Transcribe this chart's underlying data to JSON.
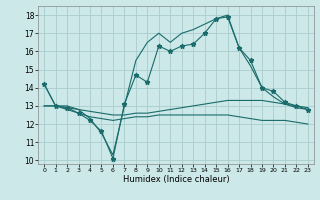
{
  "xlabel": "Humidex (Indice chaleur)",
  "x_ticks": [
    0,
    1,
    2,
    3,
    4,
    5,
    6,
    7,
    8,
    9,
    10,
    11,
    12,
    13,
    14,
    15,
    16,
    17,
    18,
    19,
    20,
    21,
    22,
    23
  ],
  "ylim": [
    9.8,
    18.5
  ],
  "xlim": [
    -0.5,
    23.5
  ],
  "y_ticks": [
    10,
    11,
    12,
    13,
    14,
    15,
    16,
    17,
    18
  ],
  "background_color": "#cce8e8",
  "grid_color": "#aacccc",
  "line_color": "#1a6b6b",
  "line1_x": [
    0,
    1,
    2,
    3,
    4,
    5,
    6,
    7,
    8,
    9,
    10,
    11,
    12,
    13,
    14,
    15,
    16,
    17,
    18,
    19,
    20,
    21,
    22,
    23
  ],
  "line1_y": [
    14.2,
    13.0,
    12.9,
    12.6,
    12.2,
    11.6,
    10.1,
    13.1,
    14.7,
    14.3,
    16.3,
    16.0,
    16.3,
    16.4,
    17.0,
    17.8,
    17.9,
    16.2,
    15.5,
    14.0,
    13.8,
    13.2,
    13.0,
    12.8
  ],
  "line2_x": [
    0,
    1,
    2,
    3,
    4,
    5,
    6,
    7,
    8,
    9,
    10,
    11,
    12,
    13,
    14,
    15,
    16,
    17,
    18,
    19,
    20,
    21,
    22,
    23
  ],
  "line2_y": [
    14.2,
    13.0,
    13.0,
    12.8,
    12.3,
    11.5,
    10.3,
    13.0,
    15.5,
    16.5,
    17.0,
    16.5,
    17.0,
    17.2,
    17.5,
    17.8,
    18.0,
    16.2,
    15.2,
    14.0,
    13.5,
    13.1,
    12.9,
    12.8
  ],
  "line3_x": [
    0,
    1,
    2,
    3,
    4,
    5,
    6,
    7,
    8,
    9,
    10,
    11,
    12,
    13,
    14,
    15,
    16,
    17,
    18,
    19,
    20,
    21,
    22,
    23
  ],
  "line3_y": [
    13.0,
    13.0,
    12.9,
    12.8,
    12.7,
    12.6,
    12.5,
    12.5,
    12.6,
    12.6,
    12.7,
    12.8,
    12.9,
    13.0,
    13.1,
    13.2,
    13.3,
    13.3,
    13.3,
    13.3,
    13.2,
    13.1,
    13.0,
    12.9
  ],
  "line4_x": [
    0,
    1,
    2,
    3,
    4,
    5,
    6,
    7,
    8,
    9,
    10,
    11,
    12,
    13,
    14,
    15,
    16,
    17,
    18,
    19,
    20,
    21,
    22,
    23
  ],
  "line4_y": [
    13.0,
    13.0,
    12.8,
    12.6,
    12.4,
    12.3,
    12.2,
    12.3,
    12.4,
    12.4,
    12.5,
    12.5,
    12.5,
    12.5,
    12.5,
    12.5,
    12.5,
    12.4,
    12.3,
    12.2,
    12.2,
    12.2,
    12.1,
    12.0
  ]
}
